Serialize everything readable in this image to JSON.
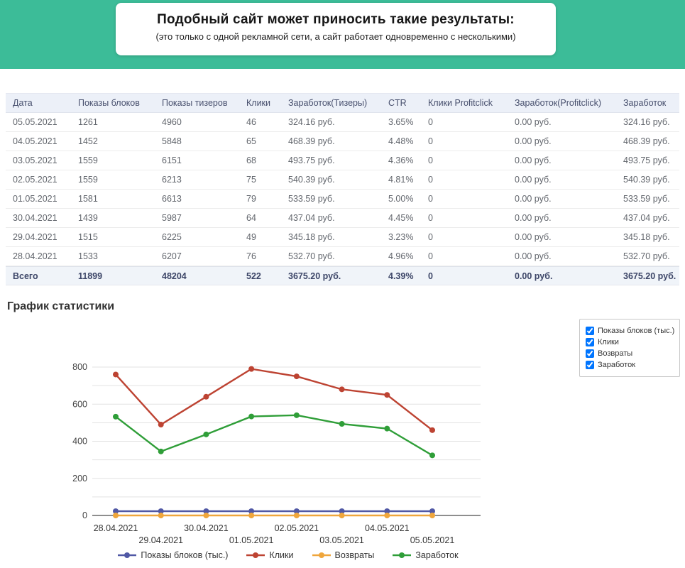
{
  "banner": {
    "title": "Подобный сайт может приносить такие результаты:",
    "subtitle": "(это только с одной рекламной сети, а сайт работает одновременно с несколькими)",
    "background_color": "#3cbc98"
  },
  "table": {
    "columns": [
      "Дата",
      "Показы блоков",
      "Показы тизеров",
      "Клики",
      "Заработок(Тизеры)",
      "CTR",
      "Клики Profitclick",
      "Заработок(Profitclick)",
      "Заработок"
    ],
    "rows": [
      [
        "05.05.2021",
        "1261",
        "4960",
        "46",
        "324.16 руб.",
        "3.65%",
        "0",
        "0.00 руб.",
        "324.16 руб."
      ],
      [
        "04.05.2021",
        "1452",
        "5848",
        "65",
        "468.39 руб.",
        "4.48%",
        "0",
        "0.00 руб.",
        "468.39 руб."
      ],
      [
        "03.05.2021",
        "1559",
        "6151",
        "68",
        "493.75 руб.",
        "4.36%",
        "0",
        "0.00 руб.",
        "493.75 руб."
      ],
      [
        "02.05.2021",
        "1559",
        "6213",
        "75",
        "540.39 руб.",
        "4.81%",
        "0",
        "0.00 руб.",
        "540.39 руб."
      ],
      [
        "01.05.2021",
        "1581",
        "6613",
        "79",
        "533.59 руб.",
        "5.00%",
        "0",
        "0.00 руб.",
        "533.59 руб."
      ],
      [
        "30.04.2021",
        "1439",
        "5987",
        "64",
        "437.04 руб.",
        "4.45%",
        "0",
        "0.00 руб.",
        "437.04 руб."
      ],
      [
        "29.04.2021",
        "1515",
        "6225",
        "49",
        "345.18 руб.",
        "3.23%",
        "0",
        "0.00 руб.",
        "345.18 руб."
      ],
      [
        "28.04.2021",
        "1533",
        "6207",
        "76",
        "532.70 руб.",
        "4.96%",
        "0",
        "0.00 руб.",
        "532.70 руб."
      ]
    ],
    "total_row": [
      "Всего",
      "11899",
      "48204",
      "522",
      "3675.20 руб.",
      "4.39%",
      "0",
      "0.00 руб.",
      "3675.20 руб."
    ]
  },
  "chart_section": {
    "heading": "График статистики"
  },
  "chart_data": {
    "type": "line",
    "title": "График статистики",
    "x_labels": [
      "28.04.2021",
      "29.04.2021",
      "30.04.2021",
      "01.05.2021",
      "02.05.2021",
      "03.05.2021",
      "04.05.2021",
      "05.05.2021"
    ],
    "ylim": [
      0,
      800
    ],
    "y_tick_labels": [
      0,
      200,
      400,
      600,
      800
    ],
    "grid_step": 100,
    "grid": true,
    "legend_position": "bottom",
    "series": [
      {
        "name": "Показы блоков (тыс.)",
        "color": "#5058a5",
        "values": [
          1.533,
          1.515,
          1.439,
          1.581,
          1.559,
          1.559,
          1.452,
          1.261
        ]
      },
      {
        "name": "Клики",
        "color": "#bd4332",
        "values": [
          760,
          490,
          640,
          790,
          750,
          680,
          650,
          460
        ]
      },
      {
        "name": "Возвраты",
        "color": "#efa63c",
        "values": [
          0,
          0,
          0,
          0,
          0,
          0,
          0,
          0
        ]
      },
      {
        "name": "Заработок",
        "color": "#2f9e38",
        "values": [
          532.7,
          345.18,
          437.04,
          533.59,
          540.39,
          493.75,
          468.39,
          324.16
        ]
      }
    ],
    "checkbox_legend": {
      "position": "top-right",
      "items": [
        {
          "label": "Показы блоков (тыс.)",
          "checked": true
        },
        {
          "label": "Клики",
          "checked": true
        },
        {
          "label": "Возвраты",
          "checked": true
        },
        {
          "label": "Заработок",
          "checked": true
        }
      ]
    }
  }
}
